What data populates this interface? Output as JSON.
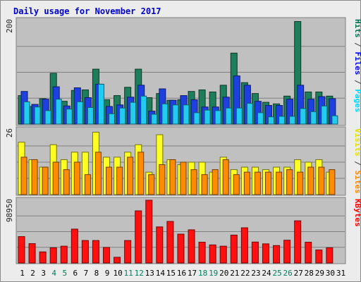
{
  "chart_data": {
    "type": "bar",
    "title": "Daily usage for November 2017",
    "categories": [
      "1",
      "2",
      "3",
      "4",
      "5",
      "6",
      "7",
      "8",
      "9",
      "10",
      "11",
      "12",
      "13",
      "14",
      "15",
      "16",
      "17",
      "18",
      "19",
      "20",
      "21",
      "22",
      "23",
      "24",
      "25",
      "26",
      "27",
      "28",
      "29",
      "30",
      "31"
    ],
    "weekend_days": [
      "4",
      "5",
      "11",
      "12",
      "18",
      "19",
      "25",
      "26"
    ],
    "panels": [
      {
        "name": "top",
        "max_label": "200",
        "ylim": [
          0,
          200
        ],
        "axis_label_parts": [
          {
            "text": "Hits",
            "color": "#006f4f"
          },
          {
            "text": " / ",
            "color": "#404040"
          },
          {
            "text": "Files",
            "color": "#0000ff"
          },
          {
            "text": " / ",
            "color": "#404040"
          },
          {
            "text": "Pages",
            "color": "#00d6ff"
          }
        ],
        "series": [
          {
            "name": "Hits",
            "color": "#1e7d5a",
            "values": [
              55,
              34,
              49,
              98,
              44,
              65,
              66,
              106,
              47,
              55,
              71,
              106,
              51,
              59,
              46,
              47,
              63,
              66,
              62,
              75,
              137,
              80,
              59,
              42,
              39,
              54,
              198,
              62,
              62,
              54,
              0
            ]
          },
          {
            "name": "Files",
            "color": "#1e40e0",
            "values": [
              63,
              38,
              48,
              72,
              35,
              70,
              51,
              77,
              34,
              37,
              52,
              75,
              25,
              68,
              46,
              55,
              47,
              33,
              33,
              52,
              93,
              75,
              44,
              36,
              36,
              48,
              75,
              48,
              53,
              49,
              0
            ]
          },
          {
            "name": "Pages",
            "color": "#22ccf0",
            "values": [
              43,
              33,
              26,
              48,
              29,
              43,
              32,
              77,
              20,
              31,
              42,
              54,
              19,
              39,
              37,
              37,
              22,
              27,
              26,
              31,
              31,
              40,
              22,
              14,
              15,
              15,
              30,
              24,
              35,
              16,
              0
            ]
          }
        ]
      },
      {
        "name": "middle",
        "max_label": "26",
        "ylim": [
          0,
          26
        ],
        "axis_label_parts": [
          {
            "text": "Visits",
            "color": "#e0e000"
          },
          {
            "text": " / ",
            "color": "#404040"
          },
          {
            "text": "Sites",
            "color": "#ff8800"
          }
        ],
        "series": [
          {
            "name": "Visits",
            "color": "#ffff22",
            "values": [
              21,
              14,
              11,
              20,
              14,
              17,
              17,
              25,
              15,
              15,
              17,
              20,
              9,
              24,
              14,
              12,
              13,
              13,
              9,
              15,
              10,
              11,
              11,
              10,
              11,
              11,
              14,
              13,
              14,
              9,
              0
            ]
          },
          {
            "name": "Sites",
            "color": "#ff8c00",
            "values": [
              15,
              14,
              11,
              13,
              10,
              13,
              8,
              17,
              11,
              11,
              15,
              17,
              8,
              12,
              14,
              13,
              10,
              8,
              10,
              14,
              8,
              9,
              9,
              9,
              9,
              10,
              9,
              11,
              11,
              10,
              0
            ]
          }
        ]
      },
      {
        "name": "bottom",
        "max_label": "98950",
        "ylim": [
          0,
          98950
        ],
        "axis_label_parts": [
          {
            "text": "KBytes",
            "color": "#ff0000"
          }
        ],
        "series": [
          {
            "name": "KBytes",
            "color": "#ff1010",
            "values": [
              41600,
              30500,
              17500,
              24000,
              26500,
              53400,
              35400,
              35400,
              24500,
              9000,
              35400,
              82200,
              98950,
              56900,
              65500,
              45500,
              52300,
              32800,
              28500,
              26500,
              44000,
              55500,
              33000,
              30200,
              27500,
              35900,
              66500,
              32800,
              20500,
              24000,
              0
            ]
          }
        ]
      }
    ]
  }
}
